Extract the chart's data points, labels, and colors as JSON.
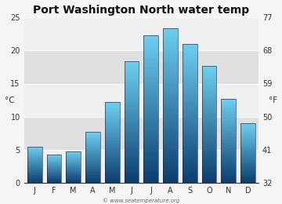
{
  "title": "Port Washington North water temp",
  "months": [
    "J",
    "F",
    "M",
    "A",
    "M",
    "J",
    "J",
    "A",
    "S",
    "O",
    "N",
    "D"
  ],
  "values_c": [
    5.5,
    4.3,
    4.8,
    7.7,
    12.2,
    18.4,
    22.3,
    23.4,
    21.0,
    17.7,
    12.7,
    9.0
  ],
  "ylabel_left": "°C",
  "ylabel_right": "°F",
  "yticks_c": [
    0,
    5,
    10,
    15,
    20,
    25
  ],
  "yticks_f": [
    32,
    41,
    50,
    59,
    68,
    77
  ],
  "ylim_c": [
    0,
    25
  ],
  "bar_color_top": "#6dcff0",
  "bar_color_bottom": "#0a3d6e",
  "background_color": "#f5f5f5",
  "plot_bg_color_light": "#f0f0f0",
  "plot_bg_color_dark": "#e0e0e0",
  "grid_color": "#ffffff",
  "watermark": "© www.seatemperature.org",
  "title_fontsize": 10,
  "axis_fontsize": 7.5,
  "tick_fontsize": 7
}
